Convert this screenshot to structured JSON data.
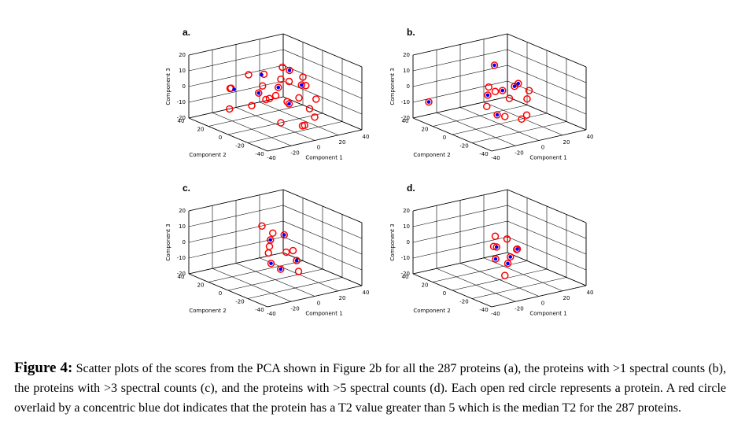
{
  "chart_data": [
    {
      "type": "scatter3d",
      "panel_label": "a.",
      "xlabel": "Component 1",
      "ylabel": "Component 2",
      "zlabel": "Component 3",
      "xlim": [
        -40,
        40
      ],
      "xticks": [
        -40,
        -20,
        0,
        20,
        40
      ],
      "ylim": [
        -40,
        40
      ],
      "yticks": [
        -40,
        -20,
        0,
        20,
        40
      ],
      "zlim": [
        -20,
        20
      ],
      "zticks": [
        -20,
        -10,
        0,
        10,
        20
      ],
      "grid": true,
      "series": [
        {
          "color": "#ff0000",
          "marker": "open-circle",
          "x": [
            -30,
            -25,
            -20,
            -15,
            -10,
            -8,
            -5,
            -3,
            0,
            2,
            5,
            8,
            10,
            12,
            15,
            18,
            20,
            22,
            25,
            -12,
            -6,
            4,
            14,
            -18,
            6,
            30,
            -2,
            10
          ],
          "y": [
            10,
            15,
            0,
            -5,
            5,
            -10,
            0,
            8,
            -3,
            12,
            -8,
            4,
            -12,
            0,
            6,
            -5,
            10,
            -15,
            2,
            -20,
            20,
            -25,
            -18,
            25,
            0,
            5,
            -30,
            -28
          ],
          "z": [
            5,
            3,
            -5,
            8,
            0,
            2,
            -3,
            10,
            4,
            -8,
            -6,
            6,
            -2,
            12,
            -10,
            3,
            1,
            -4,
            5,
            -12,
            7,
            -15,
            -8,
            -14,
            15,
            -2,
            -13,
            -10
          ]
        },
        {
          "color": "#0000ff",
          "marker": "dot",
          "x": [
            -25,
            -10,
            0,
            5,
            12,
            18,
            -5
          ],
          "y": [
            12,
            5,
            -3,
            -8,
            0,
            -5,
            8
          ],
          "z": [
            3,
            0,
            4,
            -6,
            12,
            3,
            10
          ]
        }
      ]
    },
    {
      "type": "scatter3d",
      "panel_label": "b.",
      "xlabel": "Component 1",
      "ylabel": "Component 2",
      "zlabel": "Component 3",
      "xlim": [
        -40,
        40
      ],
      "xticks": [
        -40,
        -20,
        0,
        20,
        40
      ],
      "ylim": [
        -40,
        40
      ],
      "yticks": [
        -40,
        -20,
        0,
        20,
        40
      ],
      "zlim": [
        -20,
        20
      ],
      "zticks": [
        -20,
        -10,
        0,
        10,
        20
      ],
      "grid": true,
      "series": [
        {
          "color": "#ff0000",
          "marker": "open-circle",
          "x": [
            -35,
            -15,
            -10,
            -5,
            0,
            3,
            6,
            10,
            15,
            20,
            -8,
            2,
            8,
            -12,
            25,
            4
          ],
          "y": [
            30,
            -5,
            0,
            5,
            -3,
            8,
            -8,
            2,
            -10,
            5,
            -15,
            -20,
            -18,
            -12,
            0,
            10
          ],
          "z": [
            -8,
            -5,
            0,
            3,
            2,
            -2,
            5,
            -6,
            -4,
            1,
            -10,
            -12,
            -11,
            -9,
            -3,
            14
          ]
        },
        {
          "color": "#0000ff",
          "marker": "dot",
          "x": [
            -35,
            -10,
            0,
            6,
            20,
            -12,
            4
          ],
          "y": [
            30,
            0,
            -3,
            -8,
            5,
            -12,
            10
          ],
          "z": [
            -8,
            0,
            2,
            5,
            1,
            -9,
            14
          ]
        }
      ]
    },
    {
      "type": "scatter3d",
      "panel_label": "c.",
      "xlabel": "Component 1",
      "ylabel": "Component 2",
      "zlabel": "Component 3",
      "xlim": [
        -40,
        40
      ],
      "xticks": [
        -40,
        -20,
        0,
        20,
        40
      ],
      "ylim": [
        -40,
        40
      ],
      "yticks": [
        -40,
        -20,
        0,
        20,
        40
      ],
      "zlim": [
        -20,
        20
      ],
      "zticks": [
        -20,
        -10,
        0,
        10,
        20
      ],
      "grid": true,
      "series": [
        {
          "color": "#ff0000",
          "marker": "open-circle",
          "x": [
            -12,
            -5,
            0,
            5,
            10,
            -8,
            3,
            8,
            -3,
            15,
            -10,
            2
          ],
          "y": [
            -10,
            0,
            5,
            -5,
            3,
            -15,
            -20,
            -12,
            10,
            0,
            -5,
            5
          ],
          "z": [
            -5,
            2,
            4,
            -2,
            6,
            -8,
            -10,
            -6,
            12,
            -4,
            0,
            8
          ]
        },
        {
          "color": "#0000ff",
          "marker": "dot",
          "x": [
            -12,
            0,
            10,
            -8,
            8
          ],
          "y": [
            -10,
            5,
            3,
            -15,
            -12
          ],
          "z": [
            -5,
            4,
            6,
            -8,
            -6
          ]
        }
      ]
    },
    {
      "type": "scatter3d",
      "panel_label": "d.",
      "xlabel": "Component 1",
      "ylabel": "Component 2",
      "zlabel": "Component 3",
      "xlim": [
        -40,
        40
      ],
      "xticks": [
        -40,
        -20,
        0,
        20,
        40
      ],
      "ylim": [
        -40,
        40
      ],
      "yticks": [
        -40,
        -20,
        0,
        20,
        40
      ],
      "zlim": [
        -20,
        20
      ],
      "zticks": [
        -20,
        -10,
        0,
        10,
        20
      ],
      "grid": true,
      "series": [
        {
          "color": "#ff0000",
          "marker": "open-circle",
          "x": [
            -10,
            -5,
            0,
            5,
            8,
            -3,
            3,
            12,
            -8,
            15
          ],
          "y": [
            -8,
            0,
            3,
            -5,
            2,
            -12,
            8,
            -3,
            -15,
            0
          ],
          "z": [
            -3,
            2,
            0,
            -5,
            4,
            -6,
            5,
            -2,
            -12,
            -3
          ]
        },
        {
          "color": "#0000ff",
          "marker": "dot",
          "x": [
            -10,
            0,
            5,
            15,
            -3
          ],
          "y": [
            -8,
            3,
            -5,
            0,
            -12
          ],
          "z": [
            -3,
            0,
            -5,
            -3,
            -6
          ]
        }
      ]
    }
  ],
  "caption": {
    "label": "Figure 4:",
    "text": "Scatter plots of the scores from the PCA shown in Figure 2b for all the 287 proteins (a), the proteins with >1 spectral counts (b), the proteins with >3 spectral counts (c), and the proteins with >5 spectral counts (d). Each open red circle represents a protein. A red circle overlaid by a concentric blue dot indicates that the protein has a T2 value greater than 5 which is the median T2 for the 287 proteins."
  }
}
